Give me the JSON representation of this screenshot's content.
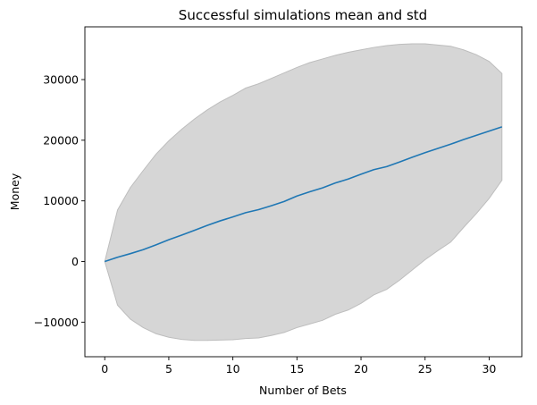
{
  "chart_data": {
    "type": "line",
    "title": "Successful simulations mean and std",
    "xlabel": "Number of Bets",
    "ylabel": "Money",
    "xlim": [
      -1.55,
      32.55
    ],
    "ylim": [
      -15700,
      38700
    ],
    "xticks": [
      0,
      5,
      10,
      15,
      20,
      25,
      30
    ],
    "yticks": [
      -10000,
      0,
      10000,
      20000,
      30000
    ],
    "ytick_labels": [
      "−10000",
      "0",
      "10000",
      "20000",
      "30000"
    ],
    "grid": false,
    "colors": {
      "mean_line": "#1f77b4",
      "std_band": "#d6d6d6",
      "std_band_edge": "#bdbdbd"
    },
    "series": [
      {
        "role": "mean",
        "x": [
          0,
          1,
          2,
          3,
          4,
          5,
          6,
          7,
          8,
          9,
          10,
          11,
          12,
          13,
          14,
          15,
          16,
          17,
          18,
          19,
          20,
          21,
          22,
          23,
          24,
          25,
          26,
          27,
          28,
          29,
          30,
          31
        ],
        "values": [
          0,
          700,
          1300,
          1950,
          2750,
          3600,
          4350,
          5150,
          5950,
          6700,
          7350,
          8050,
          8550,
          9200,
          9900,
          10800,
          11500,
          12150,
          12950,
          13600,
          14400,
          15150,
          15650,
          16400,
          17200,
          17950,
          18650,
          19350,
          20100,
          20800,
          21500,
          22200
        ]
      },
      {
        "role": "std_band",
        "x": [
          0,
          1,
          2,
          3,
          4,
          5,
          6,
          7,
          8,
          9,
          10,
          11,
          12,
          13,
          14,
          15,
          16,
          17,
          18,
          19,
          20,
          21,
          22,
          23,
          24,
          25,
          26,
          27,
          28,
          29,
          30,
          31
        ],
        "lower": [
          0,
          -7200,
          -9500,
          -10900,
          -11900,
          -12500,
          -12850,
          -13000,
          -13000,
          -12950,
          -12900,
          -12700,
          -12600,
          -12200,
          -11700,
          -10900,
          -10300,
          -9700,
          -8700,
          -8000,
          -6900,
          -5500,
          -4600,
          -3100,
          -1400,
          300,
          1800,
          3200,
          5600,
          7900,
          10400,
          13400
        ],
        "upper": [
          0,
          8500,
          12200,
          15000,
          17700,
          19900,
          21800,
          23500,
          25000,
          26300,
          27400,
          28600,
          29300,
          30200,
          31100,
          32000,
          32800,
          33400,
          34000,
          34500,
          34900,
          35300,
          35600,
          35800,
          35900,
          35900,
          35700,
          35500,
          34900,
          34100,
          33000,
          31000
        ]
      }
    ]
  }
}
